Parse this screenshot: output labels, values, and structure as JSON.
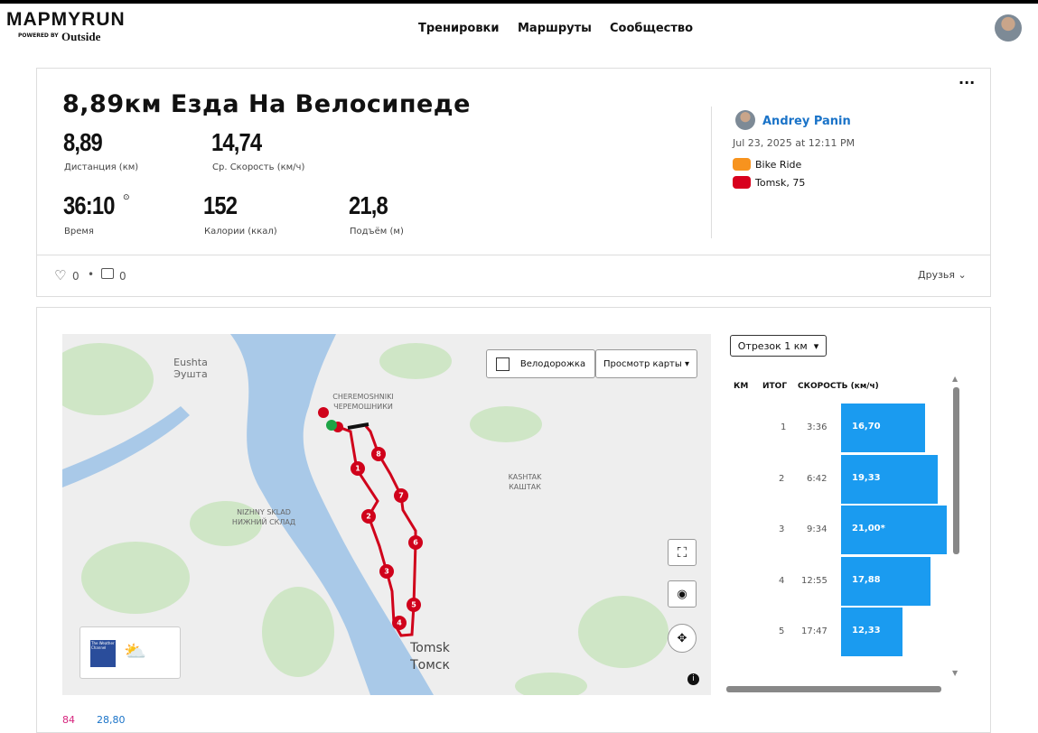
{
  "header": {
    "logo": "MAPMYRUN",
    "powered_by": "POWERED BY",
    "brand": "Outside",
    "nav": [
      "Тренировки",
      "Маршруты",
      "Сообщество"
    ]
  },
  "workout": {
    "title": "8,89км Езда На Велосипеде",
    "stats": [
      {
        "value": "8,89",
        "label": "Дистанция (км)"
      },
      {
        "value": "14,74",
        "label": "Ср. Скорость (км/ч)"
      },
      {
        "value": "36:10",
        "label": "Время"
      },
      {
        "value": "152",
        "label": "Калории (ккал)"
      },
      {
        "value": "21,8",
        "label": "Подъём (м)"
      }
    ],
    "user": "Andrey Panin",
    "date": "Jul 23, 2025 at 12:11 PM",
    "activity": "Bike Ride",
    "location": "Tomsk, 75",
    "likes": 0,
    "comments": 0,
    "privacy": "Друзья"
  },
  "map": {
    "bike_lanes": "Велодорожка",
    "map_view": "Просмотр карты",
    "labels": [
      "Eushta",
      "Эушта",
      "CHEREMOSHNIKI",
      "ЧЕРЕМОШНИКИ",
      "KASHTAK",
      "КАШТАК",
      "NIZHNY SKLAD",
      "НИЖНИЙ СКЛАД",
      "Tomsk",
      "Томск"
    ],
    "markers": [
      1,
      2,
      3,
      4,
      5,
      6,
      7,
      8
    ],
    "weather": "The Weather Channel"
  },
  "splits": {
    "selector": "Отрезок 1 км",
    "headers": [
      "КМ",
      "ИТОГ",
      "СКОРОСТЬ (км/ч)"
    ],
    "rows": [
      {
        "km": 1,
        "time": "3:36",
        "speed": 16.7,
        "speed_label": "16,70"
      },
      {
        "km": 2,
        "time": "6:42",
        "speed": 19.33,
        "speed_label": "19,33"
      },
      {
        "km": 3,
        "time": "9:34",
        "speed": 21.0,
        "speed_label": "21,00*"
      },
      {
        "km": 4,
        "time": "12:55",
        "speed": 17.88,
        "speed_label": "17,88"
      },
      {
        "km": 5,
        "time": "17:47",
        "speed": 12.33,
        "speed_label": "12,33"
      }
    ]
  },
  "footer_stats": [
    "84",
    "28,80"
  ]
}
